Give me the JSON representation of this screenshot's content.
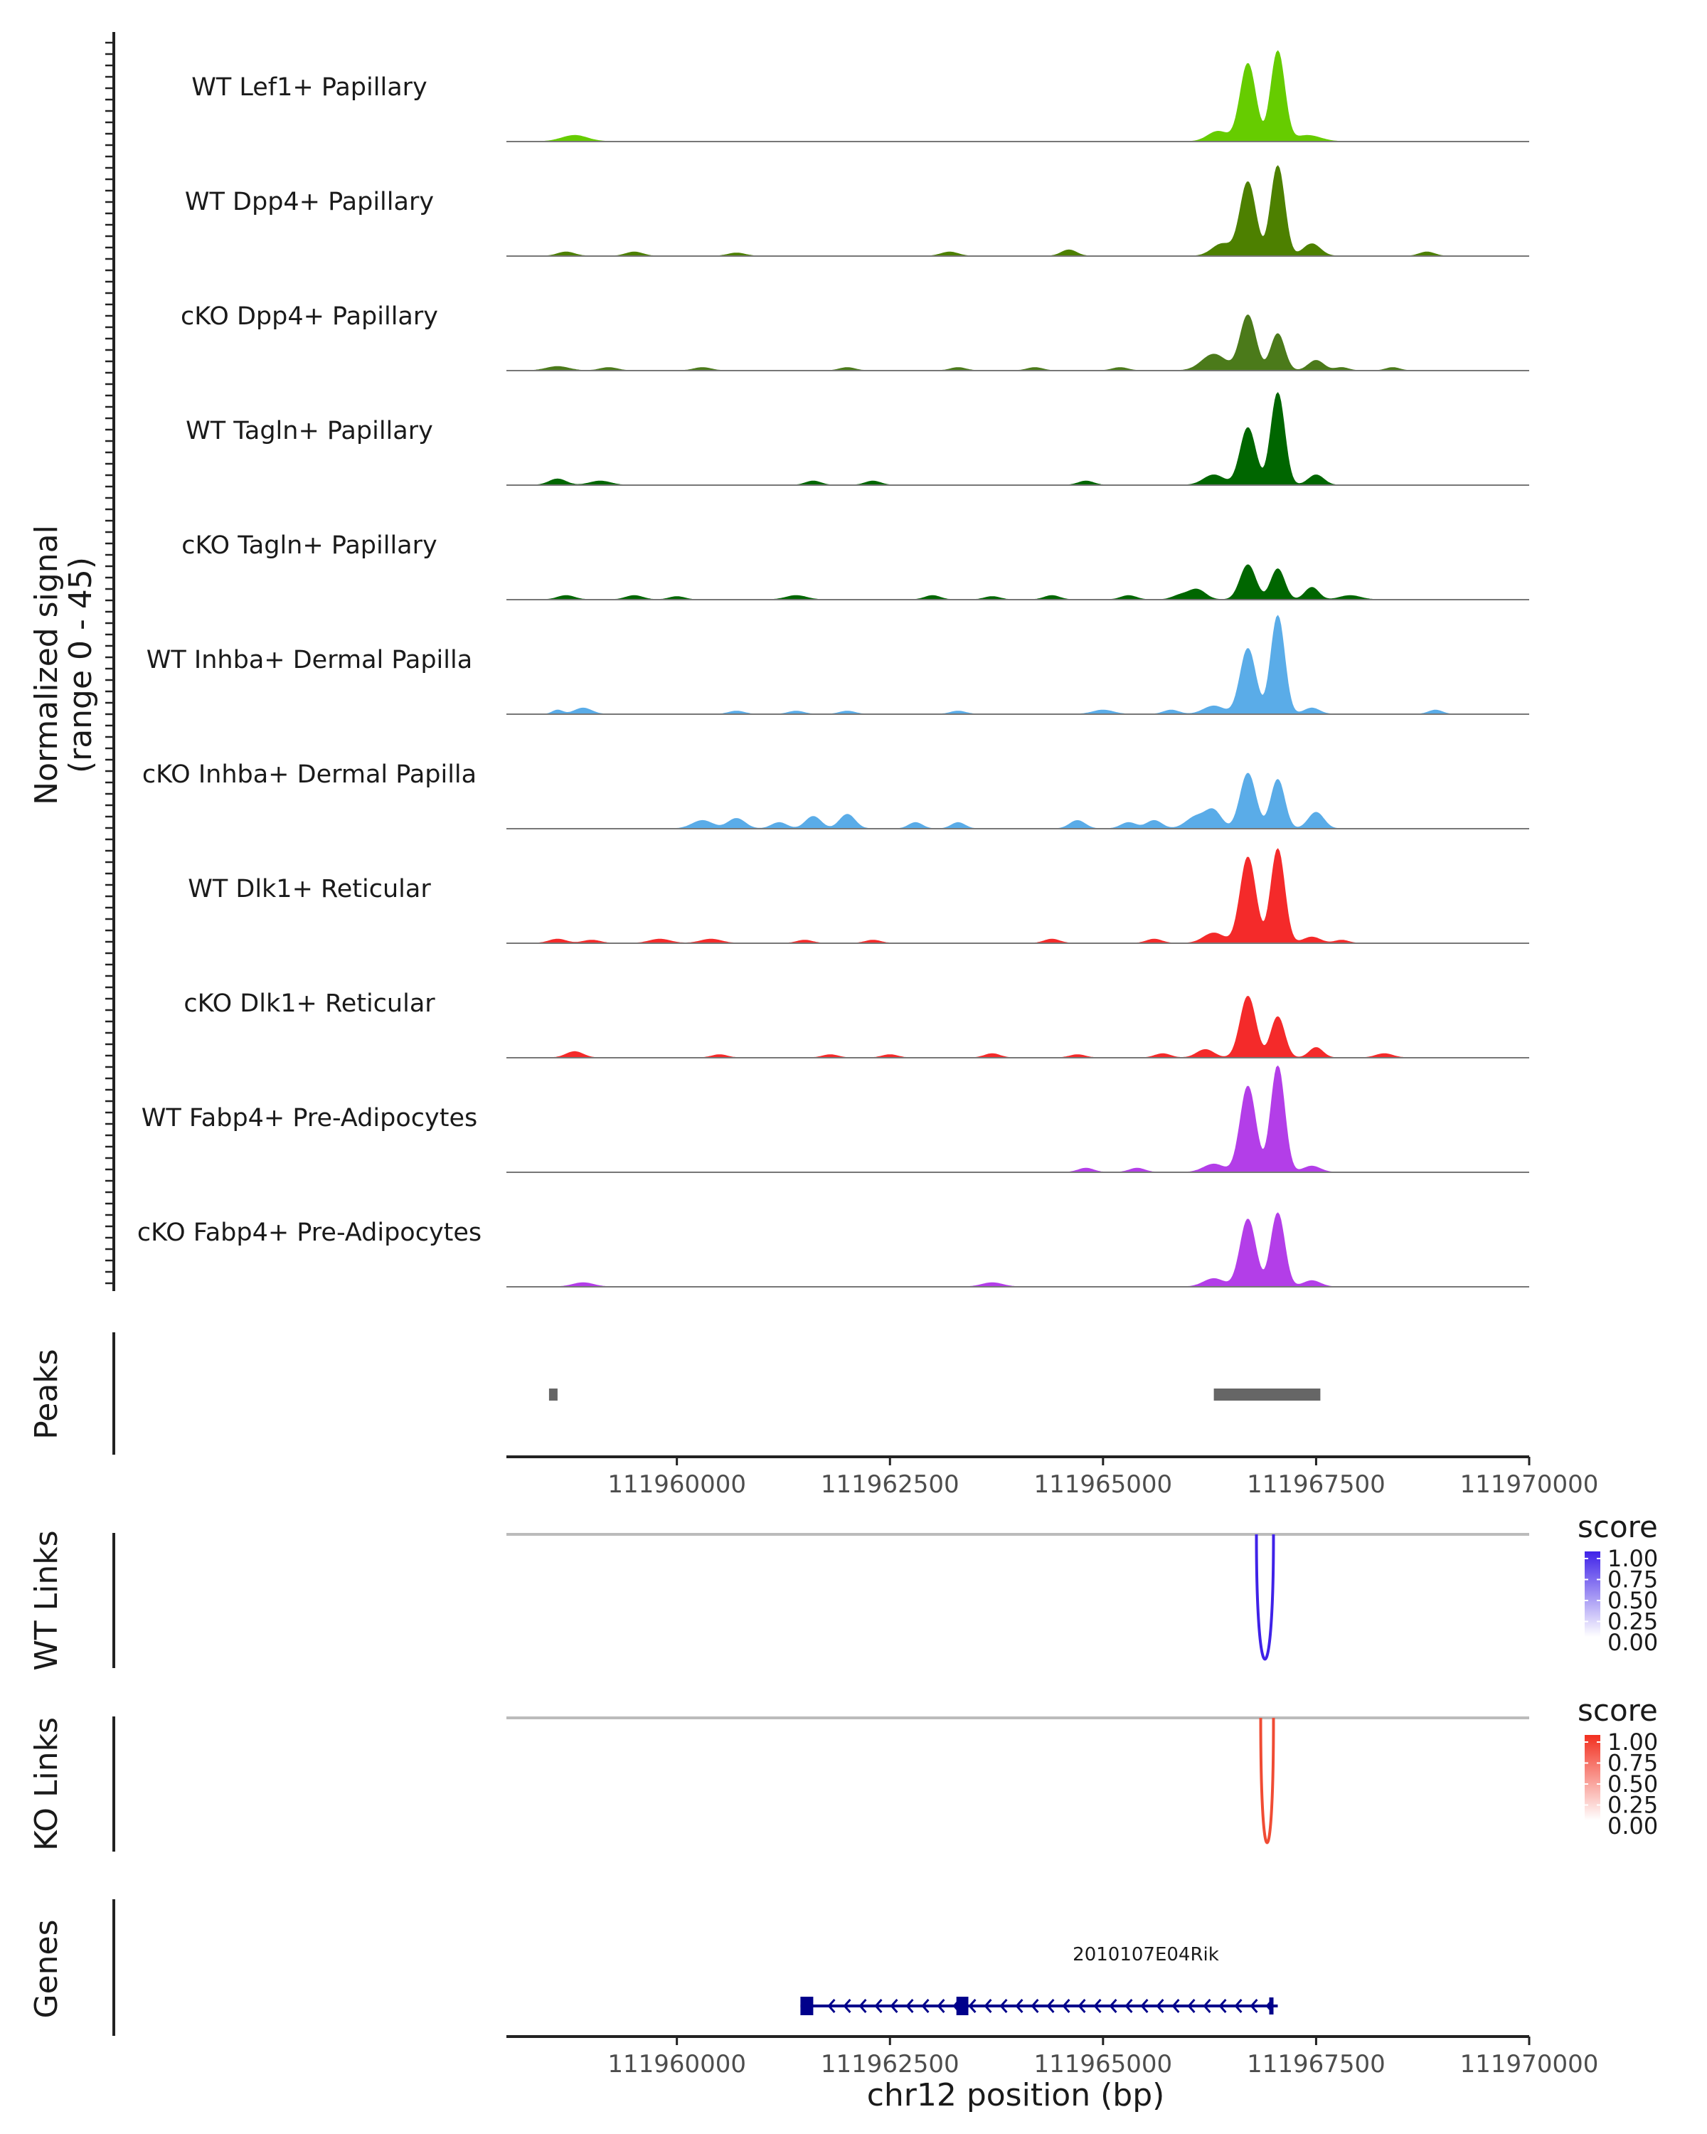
{
  "chart_data": {
    "type": "area",
    "region": "chr12:111958000-111970000",
    "x_axis": {
      "label": "chr12 position (bp)",
      "range": [
        111958000,
        111970000
      ],
      "ticks": [
        111960000,
        111962500,
        111965000,
        111967500,
        111970000
      ],
      "tick_labels": [
        "111960000",
        "111962500",
        "111965000",
        "111967500",
        "111970000"
      ]
    },
    "coverage": {
      "ylabel": "Normalized signal",
      "ylabel_range": "(range 0 - 45)",
      "ylim": [
        0,
        45
      ],
      "tracks": [
        {
          "name": "WT Lef1+ Papillary",
          "color": "#66cc00",
          "peaks": [
            [
              111966700,
              38,
              90
            ],
            [
              111967050,
              44,
              80
            ],
            [
              111966350,
              5,
              120
            ],
            [
              111967400,
              3,
              150
            ],
            [
              111958800,
              3,
              150
            ]
          ]
        },
        {
          "name": "WT Dpp4+ Papillary",
          "color": "#4d8000",
          "peaks": [
            [
              111966700,
              36,
              90
            ],
            [
              111967050,
              44,
              80
            ],
            [
              111966400,
              6,
              120
            ],
            [
              111967450,
              6,
              100
            ],
            [
              111958700,
              2,
              100
            ],
            [
              111959500,
              2,
              100
            ],
            [
              111960700,
              1.5,
              100
            ],
            [
              111963200,
              2,
              100
            ],
            [
              111964600,
              3,
              90
            ],
            [
              111968800,
              2,
              90
            ]
          ]
        },
        {
          "name": "cKO Dpp4+ Papillary",
          "color": "#4b7a1a",
          "peaks": [
            [
              111966700,
              27,
              90
            ],
            [
              111967050,
              18,
              80
            ],
            [
              111966300,
              8,
              140
            ],
            [
              111967500,
              5,
              90
            ],
            [
              111958600,
              2,
              130
            ],
            [
              111959200,
              1.5,
              100
            ],
            [
              111960300,
              1.5,
              100
            ],
            [
              111962000,
              1.5,
              90
            ],
            [
              111963300,
              1.5,
              90
            ],
            [
              111964200,
              1.5,
              90
            ],
            [
              111965200,
              1.5,
              90
            ],
            [
              111967800,
              1.5,
              80
            ],
            [
              111968400,
              1.5,
              80
            ]
          ]
        },
        {
          "name": "WT Tagln+ Papillary",
          "color": "#006600",
          "peaks": [
            [
              111966700,
              28,
              90
            ],
            [
              111967050,
              45,
              80
            ],
            [
              111966300,
              5,
              120
            ],
            [
              111967500,
              5,
              90
            ],
            [
              111958600,
              3,
              100
            ],
            [
              111959100,
              2,
              120
            ],
            [
              111961600,
              2,
              90
            ],
            [
              111962300,
              2,
              90
            ],
            [
              111964800,
              2,
              90
            ]
          ]
        },
        {
          "name": "cKO Tagln+ Papillary",
          "color": "#006600",
          "peaks": [
            [
              111966700,
              17,
              90
            ],
            [
              111967050,
              15,
              80
            ],
            [
              111966100,
              5,
              100
            ],
            [
              111967450,
              6,
              80
            ],
            [
              111958700,
              2,
              100
            ],
            [
              111959500,
              2,
              100
            ],
            [
              111960000,
              1.5,
              90
            ],
            [
              111961400,
              2,
              120
            ],
            [
              111963000,
              2,
              90
            ],
            [
              111963700,
              1.5,
              90
            ],
            [
              111964400,
              2,
              90
            ],
            [
              111965300,
              2,
              90
            ],
            [
              111965900,
              2,
              90
            ],
            [
              111967900,
              2,
              120
            ]
          ]
        },
        {
          "name": "WT Inhba+ Dermal Papilla",
          "color": "#5aace8",
          "peaks": [
            [
              111966700,
              32,
              90
            ],
            [
              111967050,
              48,
              80
            ],
            [
              111966300,
              4,
              120
            ],
            [
              111967450,
              3,
              90
            ],
            [
              111958900,
              3,
              100
            ],
            [
              111958600,
              2,
              60
            ],
            [
              111960700,
              1.5,
              90
            ],
            [
              111961400,
              1.5,
              90
            ],
            [
              111962000,
              1.5,
              90
            ],
            [
              111963300,
              1.5,
              90
            ],
            [
              111965000,
              2,
              120
            ],
            [
              111965800,
              2,
              90
            ],
            [
              111968900,
              2,
              80
            ]
          ]
        },
        {
          "name": "cKO Inhba+ Dermal Papilla",
          "color": "#5aace8",
          "peaks": [
            [
              111966700,
              27,
              90
            ],
            [
              111967050,
              24,
              80
            ],
            [
              111966100,
              6,
              120
            ],
            [
              111967500,
              8,
              90
            ],
            [
              111960300,
              4,
              120
            ],
            [
              111960700,
              5,
              100
            ],
            [
              111961200,
              3,
              90
            ],
            [
              111961600,
              6,
              90
            ],
            [
              111962000,
              7,
              90
            ],
            [
              111962800,
              3,
              80
            ],
            [
              111963300,
              3,
              80
            ],
            [
              111964700,
              4,
              90
            ],
            [
              111965300,
              3,
              90
            ],
            [
              111965600,
              4,
              90
            ],
            [
              111966300,
              8,
              90
            ]
          ]
        },
        {
          "name": "WT Dlk1+ Reticular",
          "color": "#f42a2a",
          "peaks": [
            [
              111966700,
              42,
              90
            ],
            [
              111967050,
              46,
              80
            ],
            [
              111966300,
              5,
              120
            ],
            [
              111967450,
              3,
              100
            ],
            [
              111958600,
              2,
              100
            ],
            [
              111959000,
              1.5,
              100
            ],
            [
              111959800,
              2,
              120
            ],
            [
              111960400,
              2,
              120
            ],
            [
              111961500,
              1.5,
              90
            ],
            [
              111962300,
              1.5,
              90
            ],
            [
              111964400,
              2,
              90
            ],
            [
              111965600,
              2,
              90
            ],
            [
              111967800,
              1.5,
              80
            ]
          ]
        },
        {
          "name": "cKO Dlk1+ Reticular",
          "color": "#f42a2a",
          "peaks": [
            [
              111966700,
              30,
              90
            ],
            [
              111967050,
              20,
              80
            ],
            [
              111966200,
              4,
              100
            ],
            [
              111967500,
              5,
              80
            ],
            [
              111958800,
              3,
              100
            ],
            [
              111960500,
              1.5,
              90
            ],
            [
              111961800,
              1.5,
              90
            ],
            [
              111962500,
              1.5,
              90
            ],
            [
              111963700,
              2,
              90
            ],
            [
              111964700,
              1.5,
              90
            ],
            [
              111965700,
              2,
              90
            ],
            [
              111968300,
              2,
              100
            ]
          ]
        },
        {
          "name": "WT Fabp4+ Pre-Adipocytes",
          "color": "#b33ee8",
          "peaks": [
            [
              111966700,
              42,
              90
            ],
            [
              111967050,
              52,
              80
            ],
            [
              111966300,
              4,
              120
            ],
            [
              111967450,
              3,
              100
            ],
            [
              111964800,
              2,
              90
            ],
            [
              111965400,
              2,
              90
            ]
          ]
        },
        {
          "name": "cKO Fabp4+ Pre-Adipocytes",
          "color": "#b33ee8",
          "peaks": [
            [
              111966700,
              33,
              90
            ],
            [
              111967050,
              36,
              80
            ],
            [
              111966300,
              4,
              120
            ],
            [
              111967450,
              3,
              100
            ],
            [
              111958900,
              2,
              120
            ],
            [
              111963700,
              2,
              120
            ]
          ]
        }
      ]
    },
    "peaks_track": {
      "label": "Peaks",
      "regions": [
        [
          111958500,
          111958600
        ],
        [
          111966300,
          111967550
        ]
      ],
      "color": "#666666"
    },
    "links": [
      {
        "label": "WT Links",
        "start": 111966800,
        "end": 111967000,
        "score": 1.0,
        "color": "#3f22e8",
        "legend_title": "score",
        "legend_labels": [
          "1.00",
          "0.75",
          "0.50",
          "0.25",
          "0.00"
        ],
        "legend_color": "#3f22e8"
      },
      {
        "label": "KO Links",
        "start": 111966850,
        "end": 111967000,
        "score": 1.0,
        "color": "#f04c34",
        "legend_title": "score",
        "legend_labels": [
          "1.00",
          "0.75",
          "0.50",
          "0.25",
          "0.00"
        ],
        "legend_color": "#f22f1f"
      }
    ],
    "genes": {
      "label": "Genes",
      "gene_name": "2010107E04Rik",
      "start": 111961450,
      "end": 111967050,
      "strand": "-",
      "exons": [
        [
          111961450,
          111961600
        ],
        [
          111963280,
          111963420
        ],
        [
          111966950,
          111967000
        ]
      ],
      "color": "#00008b"
    }
  }
}
